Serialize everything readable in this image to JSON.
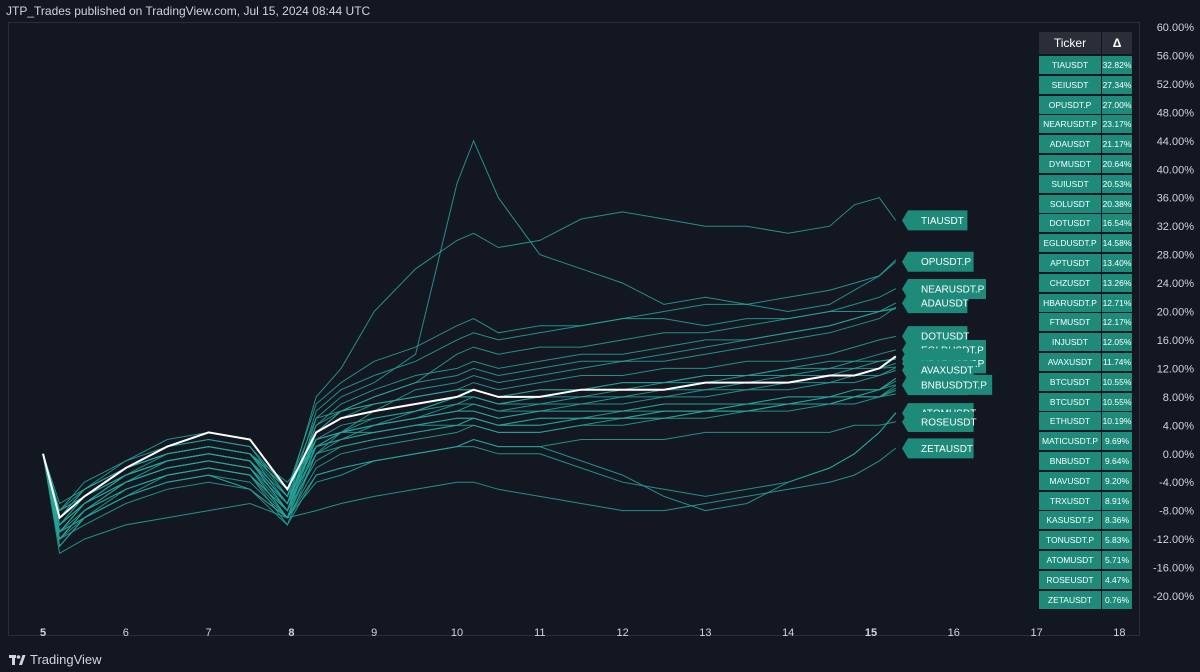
{
  "header": {
    "published": "JTP_Trades published on TradingView.com, Jul 15, 2024 08:44 UTC"
  },
  "footer": {
    "brand": "TradingView"
  },
  "colors": {
    "background": "#131722",
    "series": "#26a69a",
    "highlight": "#ffffff",
    "cell": "#1d8a7a",
    "header_cell": "#2a2e39"
  },
  "table": {
    "headers": [
      "Ticker",
      "Δ"
    ],
    "rows": [
      {
        "ticker": "TIAUSDT",
        "delta": "32.82%"
      },
      {
        "ticker": "SEIUSDT",
        "delta": "27.34%"
      },
      {
        "ticker": "OPUSDT.P",
        "delta": "27.00%"
      },
      {
        "ticker": "NEARUSDT.P",
        "delta": "23.17%"
      },
      {
        "ticker": "ADAUSDT",
        "delta": "21.17%"
      },
      {
        "ticker": "DYMUSDT",
        "delta": "20.64%"
      },
      {
        "ticker": "SUIUSDT",
        "delta": "20.53%"
      },
      {
        "ticker": "SOLUSDT",
        "delta": "20.38%"
      },
      {
        "ticker": "DOTUSDT",
        "delta": "16.54%"
      },
      {
        "ticker": "EGLDUSDT.P",
        "delta": "14.58%"
      },
      {
        "ticker": "APTUSDT",
        "delta": "13.40%"
      },
      {
        "ticker": "CHZUSDT",
        "delta": "13.26%"
      },
      {
        "ticker": "HBARUSDT.P",
        "delta": "12.71%"
      },
      {
        "ticker": "FTMUSDT",
        "delta": "12.17%"
      },
      {
        "ticker": "INJUSDT",
        "delta": "12.05%"
      },
      {
        "ticker": "AVAXUSDT",
        "delta": "11.74%"
      },
      {
        "ticker": "BTCUSDT",
        "delta": "10.55%"
      },
      {
        "ticker": "BTCUSDT",
        "delta": "10.55%"
      },
      {
        "ticker": "ETHUSDT",
        "delta": "10.19%"
      },
      {
        "ticker": "MATICUSDT.P",
        "delta": "9.69%"
      },
      {
        "ticker": "BNBUSDT",
        "delta": "9.64%"
      },
      {
        "ticker": "MAVUSDT",
        "delta": "9.20%"
      },
      {
        "ticker": "TRXUSDT",
        "delta": "8.91%"
      },
      {
        "ticker": "KASUSDT.P",
        "delta": "8.36%"
      },
      {
        "ticker": "TONUSDT.P",
        "delta": "5.83%"
      },
      {
        "ticker": "ATOMUSDT",
        "delta": "5.71%"
      },
      {
        "ticker": "ROSEUSDT",
        "delta": "4.47%"
      },
      {
        "ticker": "ZETAUSDT",
        "delta": "0.76%"
      }
    ]
  },
  "chart_data": {
    "type": "line",
    "ylim": [
      -22,
      60
    ],
    "xlim": [
      4.96,
      18.2
    ],
    "y_ticks": [
      "60.00%",
      "56.00%",
      "52.00%",
      "48.00%",
      "44.00%",
      "40.00%",
      "36.00%",
      "32.00%",
      "28.00%",
      "24.00%",
      "20.00%",
      "16.00%",
      "12.00%",
      "8.00%",
      "4.00%",
      "0.00%",
      "-4.00%",
      "-8.00%",
      "-12.00%",
      "-16.00%",
      "-20.00%"
    ],
    "y_tick_values": [
      60,
      56,
      52,
      48,
      44,
      40,
      36,
      32,
      28,
      24,
      20,
      16,
      12,
      8,
      4,
      0,
      -4,
      -8,
      -12,
      -16,
      -20
    ],
    "x_ticks": [
      {
        "label": "5",
        "value": 5,
        "bold": true
      },
      {
        "label": "6",
        "value": 6,
        "bold": false
      },
      {
        "label": "7",
        "value": 7,
        "bold": false
      },
      {
        "label": "8",
        "value": 8,
        "bold": true
      },
      {
        "label": "9",
        "value": 9,
        "bold": false
      },
      {
        "label": "10",
        "value": 10,
        "bold": false
      },
      {
        "label": "11",
        "value": 11,
        "bold": false
      },
      {
        "label": "12",
        "value": 12,
        "bold": false
      },
      {
        "label": "13",
        "value": 13,
        "bold": false
      },
      {
        "label": "14",
        "value": 14,
        "bold": false
      },
      {
        "label": "15",
        "value": 15,
        "bold": true
      },
      {
        "label": "16",
        "value": 16,
        "bold": false
      },
      {
        "label": "17",
        "value": 17,
        "bold": false
      },
      {
        "label": "18",
        "value": 18,
        "bold": false
      }
    ],
    "x": [
      5,
      5.2,
      5.5,
      6,
      6.5,
      7,
      7.5,
      7.95,
      8.3,
      8.6,
      9,
      9.5,
      10,
      10.2,
      10.5,
      11,
      11.5,
      12,
      12.5,
      13,
      13.5,
      14,
      14.5,
      14.8,
      15.1,
      15.3
    ],
    "series": [
      {
        "values": [
          0,
          -9,
          -6,
          -2,
          1,
          2,
          1,
          -6,
          8,
          12,
          20,
          26,
          30,
          31,
          29,
          30,
          33,
          34,
          33,
          32,
          32,
          31,
          32,
          35,
          36,
          32.8
        ]
      },
      {
        "values": [
          0,
          -11,
          -7,
          -4,
          -1,
          0,
          -1,
          -8,
          5,
          8,
          10,
          14,
          38,
          44,
          36,
          28,
          26,
          24,
          21,
          22,
          21,
          20,
          21,
          23,
          25,
          27.3
        ]
      },
      {
        "values": [
          0,
          -10,
          -6,
          -3,
          0,
          1,
          0,
          -7,
          6,
          9,
          11,
          13,
          16,
          17,
          16,
          17,
          18,
          19,
          20,
          21,
          21,
          22,
          23,
          24,
          25,
          27.0
        ]
      },
      {
        "values": [
          0,
          -12,
          -8,
          -4,
          -2,
          -1,
          -2,
          -9,
          3,
          6,
          8,
          10,
          14,
          15,
          14,
          15,
          15,
          16,
          17,
          17,
          18,
          19,
          20,
          21,
          22,
          23.2
        ]
      },
      {
        "values": [
          0,
          -10,
          -7,
          -3,
          -1,
          0,
          -1,
          -7,
          4,
          7,
          9,
          11,
          12,
          13,
          12,
          13,
          14,
          14,
          15,
          16,
          16,
          17,
          18,
          19,
          20,
          21.2
        ]
      },
      {
        "values": [
          0,
          -13,
          -9,
          -5,
          -3,
          -2,
          -3,
          -10,
          0,
          3,
          6,
          9,
          10,
          11,
          10,
          11,
          12,
          13,
          13,
          14,
          15,
          16,
          17,
          18,
          19,
          20.6
        ]
      },
      {
        "values": [
          0,
          -9,
          -5,
          -1,
          2,
          3,
          2,
          -5,
          7,
          10,
          13,
          15,
          18,
          19,
          17,
          18,
          18,
          19,
          19,
          18,
          19,
          19,
          20,
          20,
          20,
          20.5
        ]
      },
      {
        "values": [
          0,
          -11,
          -7,
          -3,
          -1,
          0,
          -1,
          -8,
          3,
          6,
          8,
          10,
          11,
          12,
          11,
          12,
          13,
          13,
          14,
          15,
          16,
          17,
          18,
          19,
          20,
          20.4
        ]
      },
      {
        "values": [
          0,
          -10,
          -6,
          -3,
          -1,
          0,
          -1,
          -7,
          3,
          5,
          7,
          8,
          9,
          10,
          9,
          10,
          11,
          11,
          12,
          12,
          13,
          13,
          14,
          15,
          16,
          16.5
        ]
      },
      {
        "values": [
          0,
          -12,
          -8,
          -4,
          -2,
          -1,
          -2,
          -9,
          1,
          3,
          5,
          6,
          8,
          8,
          7,
          8,
          9,
          9,
          10,
          11,
          11,
          12,
          13,
          13,
          14,
          14.6
        ]
      },
      {
        "values": [
          0,
          -9,
          -5,
          -2,
          0,
          1,
          0,
          -6,
          4,
          6,
          7,
          8,
          9,
          9,
          8,
          9,
          9,
          10,
          10,
          11,
          11,
          12,
          12,
          13,
          13,
          13.4
        ]
      },
      {
        "values": [
          0,
          -8,
          -4,
          -1,
          1,
          2,
          1,
          -5,
          5,
          6,
          7,
          8,
          9,
          9,
          8,
          9,
          9,
          10,
          10,
          10,
          11,
          11,
          12,
          12,
          13,
          13.3
        ]
      },
      {
        "values": [
          0,
          -11,
          -7,
          -3,
          -1,
          0,
          -1,
          -7,
          2,
          4,
          5,
          6,
          8,
          8,
          7,
          8,
          8,
          9,
          9,
          10,
          10,
          11,
          11,
          12,
          12,
          12.7
        ]
      },
      {
        "values": [
          0,
          -13,
          -9,
          -6,
          -3,
          -2,
          -3,
          -9,
          0,
          2,
          4,
          6,
          7,
          8,
          7,
          7,
          8,
          8,
          9,
          9,
          10,
          10,
          11,
          11,
          12,
          12.2
        ]
      },
      {
        "values": [
          0,
          -12,
          -8,
          -5,
          -3,
          -2,
          -3,
          -8,
          1,
          3,
          4,
          5,
          7,
          7,
          6,
          7,
          7,
          8,
          8,
          9,
          9,
          10,
          10,
          11,
          11,
          12.1
        ]
      },
      {
        "values": [
          0,
          -10,
          -7,
          -4,
          -2,
          -1,
          -2,
          -8,
          2,
          3,
          4,
          5,
          6,
          7,
          6,
          6,
          7,
          7,
          8,
          8,
          9,
          9,
          10,
          10,
          11,
          11.7
        ]
      },
      {
        "values": [
          0,
          -8,
          -6,
          -2,
          0,
          1,
          0,
          -5,
          2,
          3,
          4,
          5,
          6,
          6,
          5,
          6,
          6,
          6,
          7,
          7,
          7,
          8,
          8,
          9,
          9,
          10.6
        ]
      },
      {
        "values": [
          0,
          -8,
          -6,
          -2,
          0,
          1,
          0,
          -5,
          2,
          3,
          4,
          5,
          6,
          6,
          5,
          6,
          6,
          6,
          7,
          7,
          7,
          8,
          8,
          9,
          9,
          10.6
        ]
      },
      {
        "values": [
          0,
          -9,
          -6,
          -3,
          -1,
          0,
          -1,
          -6,
          1,
          2,
          3,
          4,
          5,
          5,
          4,
          5,
          5,
          6,
          6,
          6,
          7,
          7,
          8,
          8,
          9,
          10.2
        ]
      },
      {
        "values": [
          0,
          -11,
          -8,
          -5,
          -3,
          -2,
          -3,
          -8,
          -1,
          1,
          2,
          3,
          4,
          5,
          4,
          4,
          5,
          5,
          6,
          6,
          7,
          7,
          8,
          8,
          9,
          9.7
        ]
      },
      {
        "values": [
          0,
          -8,
          -5,
          -2,
          0,
          1,
          0,
          -5,
          2,
          3,
          3,
          4,
          5,
          5,
          4,
          5,
          5,
          5,
          6,
          6,
          6,
          7,
          7,
          8,
          8,
          9.6
        ]
      },
      {
        "values": [
          0,
          -12,
          -9,
          -6,
          -4,
          -3,
          -4,
          -9,
          -2,
          0,
          1,
          2,
          3,
          4,
          3,
          3,
          4,
          5,
          5,
          6,
          6,
          7,
          7,
          8,
          8,
          9.2
        ]
      },
      {
        "values": [
          0,
          -7,
          -5,
          -2,
          0,
          1,
          0,
          -4,
          1,
          2,
          3,
          4,
          4,
          5,
          4,
          4,
          5,
          5,
          5,
          6,
          6,
          7,
          7,
          8,
          8,
          8.9
        ]
      },
      {
        "values": [
          0,
          -10,
          -7,
          -4,
          -2,
          -1,
          -2,
          -7,
          0,
          1,
          2,
          3,
          4,
          4,
          3,
          3,
          4,
          4,
          5,
          5,
          6,
          6,
          7,
          7,
          8,
          8.4
        ]
      },
      {
        "values": [
          0,
          -11,
          -9,
          -6,
          -4,
          -3,
          -5,
          -9,
          -4,
          -3,
          -1,
          0,
          1,
          1,
          0,
          0,
          -2,
          -4,
          -5,
          -6,
          -5,
          -4,
          -2,
          0,
          3,
          5.8
        ]
      },
      {
        "values": [
          0,
          -12,
          -10,
          -7,
          -5,
          -4,
          -5,
          -10,
          -3,
          -2,
          -1,
          0,
          1,
          2,
          1,
          1,
          -1,
          -3,
          -6,
          -8,
          -7,
          -4,
          -2,
          0,
          3,
          5.7
        ]
      },
      {
        "values": [
          0,
          -11,
          -9,
          -6,
          -4,
          -3,
          -5,
          -9,
          -3,
          -2,
          -1,
          0,
          1,
          2,
          1,
          1,
          2,
          2,
          2,
          3,
          3,
          3,
          3,
          4,
          4,
          4.5
        ]
      },
      {
        "values": [
          0,
          -14,
          -12,
          -10,
          -9,
          -8,
          -7,
          -9,
          -8,
          -7,
          -6,
          -5,
          -4,
          -4,
          -5,
          -6,
          -7,
          -8,
          -8,
          -7,
          -6,
          -5,
          -4,
          -3,
          -1,
          0.8
        ]
      }
    ],
    "highlight_series": {
      "values": [
        0,
        -9,
        -6,
        -2,
        1,
        3,
        2,
        -5,
        3,
        5,
        6,
        7,
        8,
        9,
        8,
        8,
        9,
        9,
        9,
        10,
        10,
        10,
        11,
        11,
        12,
        13.7
      ]
    },
    "labels": [
      {
        "text": "TIAUSDT",
        "y": 32.82
      },
      {
        "text": "OPUSDT.P",
        "y": 27.0
      },
      {
        "text": "NEARUSDT.P",
        "y": 23.17
      },
      {
        "text": "ADAUSDT",
        "y": 21.17
      },
      {
        "text": "DOTUSDT",
        "y": 16.54
      },
      {
        "text": "EGLDUSDT.P",
        "y": 14.58
      },
      {
        "text": "APTUSDT",
        "y": 13.4
      },
      {
        "text": "CHZUSDT",
        "y": 13.26
      },
      {
        "text": "HBARUSDT.P",
        "y": 12.71
      },
      {
        "text": "AVAXUSDT",
        "y": 11.74
      },
      {
        "text": "MATICUSDT.P",
        "y": 9.69
      },
      {
        "text": "BNBUSDT",
        "y": 9.64
      },
      {
        "text": "ATOMUSDT",
        "y": 5.71
      },
      {
        "text": "ROSEUSDT",
        "y": 4.47
      },
      {
        "text": "ZETAUSDT",
        "y": 0.76
      }
    ]
  }
}
